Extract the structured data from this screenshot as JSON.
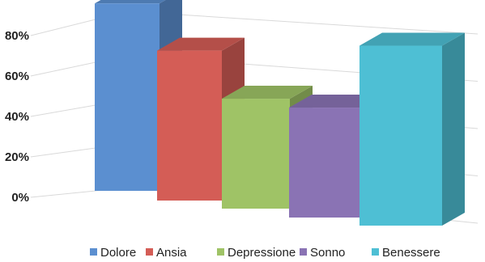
{
  "chart_data": {
    "type": "bar",
    "subtype": "3d-clustered-column",
    "categories": [
      "Dolore",
      "Ansia",
      "Depressione",
      "Sonno",
      "Benessere"
    ],
    "values": [
      75,
      60,
      44,
      44,
      72
    ],
    "value_unit": "%",
    "ylim": [
      0,
      80
    ],
    "yticks": [
      "0%",
      "20%",
      "40%",
      "60%",
      "80%"
    ],
    "grid": true,
    "legend_position": "bottom",
    "colors": [
      "#5b8fd0",
      "#d45d56",
      "#9fc366",
      "#8a73b4",
      "#4ebfd4"
    ],
    "title": "",
    "xlabel": "",
    "ylabel": ""
  }
}
